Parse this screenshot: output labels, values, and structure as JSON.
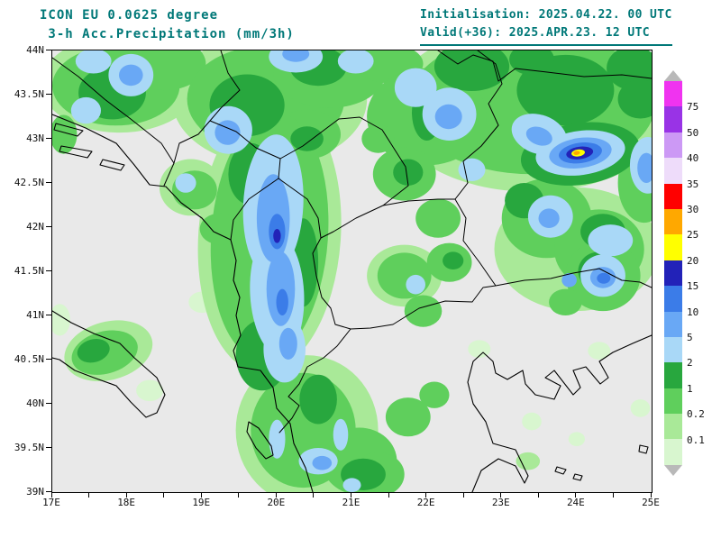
{
  "header": {
    "line1": "ICON EU 0.0625 degree",
    "line2": " 3-h Acc.Precipitation (mm/3h)",
    "init": "Initialisation: 2025.04.22. 00 UTC",
    "valid": "Valid(+36): 2025.APR.23. 12 UTC"
  },
  "colors": {
    "header_text": "#007878",
    "map_bg": "#e9e9e9",
    "line": "#000000",
    "tick_text": "#111111",
    "arrow_gray": "#b9b9b9"
  },
  "map": {
    "lon_min": 17,
    "lon_max": 25,
    "lat_min": 39,
    "lat_max": 44,
    "lat_ticks": [
      {
        "v": 44,
        "label": "44N"
      },
      {
        "v": 43.5,
        "label": "43.5N"
      },
      {
        "v": 43,
        "label": "43N"
      },
      {
        "v": 42.5,
        "label": "42.5N"
      },
      {
        "v": 42,
        "label": "42N"
      },
      {
        "v": 41.5,
        "label": "41.5N"
      },
      {
        "v": 41,
        "label": "41N"
      },
      {
        "v": 40.5,
        "label": "40.5N"
      },
      {
        "v": 40,
        "label": "40N"
      },
      {
        "v": 39.5,
        "label": "39.5N"
      },
      {
        "v": 39,
        "label": "39N"
      }
    ],
    "lon_ticks": [
      {
        "v": 17,
        "label": "17E"
      },
      {
        "v": 17.5,
        "label": ""
      },
      {
        "v": 18,
        "label": "18E"
      },
      {
        "v": 18.5,
        "label": ""
      },
      {
        "v": 19,
        "label": "19E"
      },
      {
        "v": 19.5,
        "label": ""
      },
      {
        "v": 20,
        "label": "20E"
      },
      {
        "v": 20.5,
        "label": ""
      },
      {
        "v": 21,
        "label": "21E"
      },
      {
        "v": 21.5,
        "label": ""
      },
      {
        "v": 22,
        "label": "22E"
      },
      {
        "v": 22.5,
        "label": ""
      },
      {
        "v": 23,
        "label": "23E"
      },
      {
        "v": 23.5,
        "label": ""
      },
      {
        "v": 24,
        "label": "24E"
      },
      {
        "v": 24.5,
        "label": ""
      },
      {
        "v": 25,
        "label": "25E"
      }
    ],
    "coast_paths": [
      "M 0 71 L 37 86 L 71 103 L 91 127 L 108 149 L 126 151 L 143 169 L 166 186 L 179 201 L 198 210 L 204 233 L 201 255 L 208 274 L 204 294 L 209 316 L 201 333 L 206 351 L 231 355 L 245 374 L 249 397 L 264 414 L 268 436 L 281 463 L 289 490",
      "M 4 81 L 34 89 L 28 95 L 2 88 Z",
      "M 10 106 L 44 112 L 39 119 L 8 112 Z",
      "M 56 121 L 80 127 L 76 133 L 53 127 Z",
      "M 0 289 L 21 302 L 46 314 L 75 325 L 91 341 L 116 363 L 125 382 L 116 402 L 104 407 L 87 390 L 71 372 L 46 363 L 25 355 L 8 343 L 0 341",
      "M 218 412 L 229 419 L 243 439 L 245 449 L 237 453 L 226 441 L 216 423 Z",
      "M 466 490 L 476 466 L 495 453 L 514 461 L 524 480 L 528 472 L 514 443 L 489 436 L 481 412 L 467 392 L 461 368 L 467 345 L 478 335 L 489 345 L 492 358 L 505 365 L 522 355 L 525 370 L 536 382 L 557 387 L 564 372 L 547 363 L 557 355 L 578 382 L 586 374 L 578 355 L 592 351 L 608 370 L 617 363 L 607 345 L 622 335 L 644 325 L 665 316",
      "M 560 462 L 570 465 L 567 470 L 558 467 Z",
      "M 580 470 L 588 472 L 586 477 L 578 475 Z",
      "M 652 438 L 661 440 L 659 447 L 651 445 Z"
    ],
    "border_paths": [
      "M 0 8 L 29 29 L 58 54 L 87 76 L 121 103 L 135 125 L 124 150",
      "M 187 0 L 195 25 L 208 44 L 187 64 L 175 78 L 162 93 L 141 103 L 135 125",
      "M 175 78 L 204 90 L 226 108 L 253 120 L 251 142 L 218 165 L 201 188 L 198 210",
      "M 253 120 L 278 106 L 318 76 L 341 74 L 366 88 L 392 129 L 395 150 L 367 172 L 337 186 L 312 201 L 298 208 L 295 186 L 283 165 L 251 142",
      "M 367 172 L 395 167 L 428 165 L 447 165 L 461 147 L 456 123 L 476 106 L 495 83 L 484 59 L 499 37 L 492 15 L 472 0",
      "M 447 165 L 459 186 L 456 211 L 474 235 L 492 261",
      "M 492 261 L 478 263 L 466 279 L 436 278 L 407 286 L 378 304 L 353 308 L 331 309",
      "M 331 309 L 314 304 L 309 286 L 299 274 L 293 250 L 289 225 L 298 208",
      "M 331 309 L 316 328 L 301 341 L 283 351 L 274 370 L 262 384 L 274 394 L 266 408 L 252 424",
      "M 428 0 L 450 15 L 467 5 L 489 12 L 495 34 L 514 20 L 549 24 L 590 29 L 632 27 L 665 31",
      "M 492 261 L 524 255 L 553 253 L 578 247 L 607 242 L 632 255 L 652 257 L 665 263"
    ],
    "blobs": [
      [
        18.3,
        40.15,
        0.18,
        0.12,
        0,
        "trace"
      ],
      [
        17.1,
        40.95,
        0.14,
        0.18,
        0,
        "trace"
      ],
      [
        23.4,
        39.8,
        0.13,
        0.1,
        0,
        "trace"
      ],
      [
        24.0,
        39.6,
        0.11,
        0.08,
        0,
        "trace"
      ],
      [
        24.85,
        39.95,
        0.13,
        0.1,
        0,
        "trace"
      ],
      [
        24.3,
        40.6,
        0.15,
        0.1,
        0,
        "trace"
      ],
      [
        22.7,
        40.62,
        0.15,
        0.1,
        0,
        "trace"
      ],
      [
        19.0,
        41.15,
        0.18,
        0.12,
        0,
        "trace"
      ],
      [
        17.9,
        43.62,
        1.05,
        0.55,
        0,
        "0.1"
      ],
      [
        19.9,
        43.45,
        1.3,
        0.75,
        0,
        "0.1"
      ],
      [
        23.4,
        43.35,
        1.9,
        0.95,
        0,
        "0.1"
      ],
      [
        19.9,
        41.9,
        0.95,
        1.55,
        4,
        "0.1"
      ],
      [
        18.85,
        42.45,
        0.42,
        0.32,
        0,
        "0.1"
      ],
      [
        21.7,
        41.45,
        0.5,
        0.35,
        0,
        "0.1"
      ],
      [
        24.0,
        41.75,
        1.1,
        0.7,
        0,
        "0.1"
      ],
      [
        20.4,
        39.7,
        0.95,
        0.85,
        0,
        "0.1"
      ],
      [
        17.75,
        40.6,
        0.6,
        0.33,
        -15,
        "0.1"
      ],
      [
        23.35,
        39.35,
        0.16,
        0.1,
        0,
        "0.1"
      ],
      [
        17.85,
        43.6,
        0.85,
        0.45,
        0,
        "0.2"
      ],
      [
        18.5,
        43.85,
        0.55,
        0.3,
        0,
        "0.2"
      ],
      [
        17.15,
        43.05,
        0.18,
        0.22,
        0,
        "0.2"
      ],
      [
        19.85,
        43.45,
        1.05,
        0.6,
        0,
        "0.2"
      ],
      [
        20.7,
        43.75,
        0.75,
        0.4,
        0,
        "0.2"
      ],
      [
        20.4,
        43.05,
        0.45,
        0.28,
        0,
        "0.2"
      ],
      [
        21.5,
        43.85,
        0.45,
        0.22,
        0,
        "0.2"
      ],
      [
        23.4,
        43.4,
        1.65,
        0.8,
        0,
        "0.2"
      ],
      [
        22.0,
        43.25,
        0.8,
        0.55,
        0,
        "0.2"
      ],
      [
        24.9,
        42.5,
        0.35,
        0.45,
        0,
        "0.2"
      ],
      [
        19.9,
        41.9,
        0.78,
        1.4,
        4,
        "0.2"
      ],
      [
        18.9,
        42.42,
        0.3,
        0.22,
        0,
        "0.2"
      ],
      [
        19.25,
        41.98,
        0.28,
        0.18,
        0,
        "0.2"
      ],
      [
        21.7,
        42.6,
        0.42,
        0.3,
        0,
        "0.2"
      ],
      [
        22.15,
        42.1,
        0.3,
        0.22,
        0,
        "0.2"
      ],
      [
        21.35,
        43.0,
        0.22,
        0.16,
        0,
        "0.2"
      ],
      [
        21.7,
        41.45,
        0.36,
        0.26,
        0,
        "0.2"
      ],
      [
        22.3,
        41.6,
        0.3,
        0.22,
        0,
        "0.2"
      ],
      [
        21.95,
        41.05,
        0.25,
        0.18,
        0,
        "0.2"
      ],
      [
        23.6,
        42.1,
        0.6,
        0.45,
        0,
        "0.2"
      ],
      [
        24.3,
        41.75,
        0.6,
        0.45,
        0,
        "0.2"
      ],
      [
        24.35,
        41.45,
        0.5,
        0.4,
        0,
        "0.2"
      ],
      [
        23.85,
        41.15,
        0.22,
        0.15,
        0,
        "0.2"
      ],
      [
        20.35,
        39.7,
        0.7,
        0.65,
        0,
        "0.2"
      ],
      [
        21.1,
        39.35,
        0.5,
        0.38,
        0,
        "0.2"
      ],
      [
        21.75,
        39.85,
        0.3,
        0.22,
        0,
        "0.2"
      ],
      [
        22.1,
        40.1,
        0.2,
        0.15,
        0,
        "0.2"
      ],
      [
        21.35,
        39.2,
        0.35,
        0.25,
        0,
        "0.2"
      ],
      [
        17.7,
        40.58,
        0.45,
        0.24,
        -15,
        "0.2"
      ],
      [
        17.8,
        43.52,
        0.45,
        0.3,
        0,
        "1"
      ],
      [
        19.6,
        43.38,
        0.5,
        0.35,
        0,
        "1"
      ],
      [
        20.55,
        43.82,
        0.38,
        0.22,
        0,
        "1"
      ],
      [
        20.4,
        43.0,
        0.22,
        0.14,
        0,
        "1"
      ],
      [
        22.6,
        43.82,
        0.5,
        0.28,
        0,
        "1"
      ],
      [
        23.85,
        43.55,
        0.65,
        0.4,
        0,
        "1"
      ],
      [
        24.75,
        43.8,
        0.35,
        0.25,
        0,
        "1"
      ],
      [
        23.4,
        43.9,
        0.3,
        0.18,
        0,
        "1"
      ],
      [
        22.0,
        43.3,
        0.2,
        0.32,
        0,
        "1"
      ],
      [
        24.05,
        42.83,
        0.8,
        0.35,
        -8,
        "1"
      ],
      [
        19.65,
        42.6,
        0.3,
        0.35,
        0,
        "1"
      ],
      [
        20.35,
        41.6,
        0.2,
        0.5,
        0,
        "1"
      ],
      [
        19.8,
        40.55,
        0.35,
        0.4,
        0,
        "1"
      ],
      [
        21.75,
        42.62,
        0.2,
        0.15,
        0,
        "1"
      ],
      [
        22.35,
        41.62,
        0.14,
        0.1,
        0,
        "1"
      ],
      [
        23.3,
        42.3,
        0.26,
        0.2,
        0,
        "1"
      ],
      [
        24.35,
        41.95,
        0.3,
        0.2,
        0,
        "1"
      ],
      [
        24.3,
        41.5,
        0.28,
        0.22,
        0,
        "1"
      ],
      [
        20.55,
        40.05,
        0.25,
        0.28,
        0,
        "1"
      ],
      [
        21.15,
        39.2,
        0.3,
        0.18,
        0,
        "1"
      ],
      [
        17.55,
        40.6,
        0.22,
        0.13,
        -15,
        "1"
      ],
      [
        24.85,
        43.45,
        0.3,
        0.22,
        0,
        "1"
      ],
      [
        18.05,
        43.72,
        0.3,
        0.24,
        0,
        "2"
      ],
      [
        17.55,
        43.88,
        0.24,
        0.14,
        0,
        "2"
      ],
      [
        17.45,
        43.32,
        0.2,
        0.15,
        0,
        "2"
      ],
      [
        19.35,
        43.1,
        0.32,
        0.27,
        0,
        "2"
      ],
      [
        20.25,
        43.93,
        0.36,
        0.18,
        0,
        "2"
      ],
      [
        21.05,
        43.88,
        0.24,
        0.14,
        0,
        "2"
      ],
      [
        21.85,
        43.58,
        0.28,
        0.22,
        0,
        "2"
      ],
      [
        22.3,
        43.28,
        0.36,
        0.3,
        0,
        "2"
      ],
      [
        23.5,
        43.05,
        0.38,
        0.22,
        20,
        "2"
      ],
      [
        22.6,
        42.65,
        0.18,
        0.13,
        0,
        "2"
      ],
      [
        24.05,
        42.84,
        0.6,
        0.25,
        -8,
        "2"
      ],
      [
        24.95,
        42.7,
        0.24,
        0.32,
        0,
        "2"
      ],
      [
        19.95,
        42.25,
        0.4,
        0.8,
        3,
        "2"
      ],
      [
        20.0,
        41.25,
        0.36,
        0.7,
        -3,
        "2"
      ],
      [
        20.1,
        40.62,
        0.28,
        0.38,
        0,
        "2"
      ],
      [
        18.78,
        42.5,
        0.14,
        0.11,
        0,
        "2"
      ],
      [
        21.85,
        41.35,
        0.13,
        0.11,
        0,
        "2"
      ],
      [
        23.65,
        42.12,
        0.3,
        0.24,
        0,
        "2"
      ],
      [
        24.45,
        41.85,
        0.3,
        0.18,
        0,
        "2"
      ],
      [
        24.35,
        41.45,
        0.3,
        0.24,
        0,
        "2"
      ],
      [
        20.0,
        39.6,
        0.11,
        0.22,
        0,
        "2"
      ],
      [
        20.55,
        39.35,
        0.26,
        0.15,
        0,
        "2"
      ],
      [
        20.85,
        39.65,
        0.1,
        0.18,
        0,
        "2"
      ],
      [
        21.0,
        39.08,
        0.12,
        0.08,
        0,
        "2"
      ],
      [
        18.05,
        43.72,
        0.16,
        0.12,
        0,
        "5"
      ],
      [
        19.34,
        43.07,
        0.17,
        0.14,
        0,
        "5"
      ],
      [
        20.25,
        43.96,
        0.18,
        0.09,
        0,
        "5"
      ],
      [
        22.29,
        43.25,
        0.18,
        0.14,
        0,
        "5"
      ],
      [
        23.5,
        43.03,
        0.18,
        0.1,
        20,
        "5"
      ],
      [
        24.05,
        42.84,
        0.42,
        0.17,
        -8,
        "5"
      ],
      [
        24.93,
        42.67,
        0.12,
        0.17,
        0,
        "5"
      ],
      [
        19.95,
        42.1,
        0.22,
        0.5,
        0,
        "5"
      ],
      [
        20.05,
        41.3,
        0.19,
        0.42,
        0,
        "5"
      ],
      [
        20.15,
        40.68,
        0.12,
        0.18,
        0,
        "5"
      ],
      [
        23.63,
        42.1,
        0.14,
        0.11,
        0,
        "5"
      ],
      [
        24.35,
        41.43,
        0.17,
        0.12,
        0,
        "5"
      ],
      [
        23.9,
        41.4,
        0.1,
        0.08,
        0,
        "5"
      ],
      [
        20.6,
        39.33,
        0.13,
        0.08,
        0,
        "5"
      ],
      [
        24.05,
        42.84,
        0.29,
        0.115,
        -8,
        "10"
      ],
      [
        20.0,
        41.95,
        0.11,
        0.2,
        0,
        "10"
      ],
      [
        20.07,
        41.15,
        0.08,
        0.15,
        0,
        "10"
      ],
      [
        24.36,
        41.42,
        0.09,
        0.06,
        0,
        "10"
      ],
      [
        24.04,
        42.84,
        0.18,
        0.07,
        -8,
        "15"
      ],
      [
        20.0,
        41.9,
        0.05,
        0.08,
        0,
        "15"
      ],
      [
        24.02,
        42.84,
        0.09,
        0.04,
        -8,
        "20"
      ],
      [
        24.0,
        42.84,
        0.045,
        0.022,
        -8,
        "25"
      ]
    ]
  },
  "colorbar": {
    "map_palette": {
      "trace": "#d8f6cf",
      "0.1": "#a9e998",
      "0.2": "#5fcf5c",
      "1": "#28a73e",
      "2": "#a9d8f7",
      "5": "#69a8f5",
      "10": "#3b7ce8",
      "15": "#2222b8",
      "20": "#ffff00",
      "25": "#ffa800",
      "30": "#ff0000",
      "35": "#eedcfa",
      "40": "#cc99f5",
      "50": "#9933e6",
      "75": "#f033f0"
    },
    "bands_top_to_bottom": [
      {
        "color": "#f033f0",
        "label": "75"
      },
      {
        "color": "#9933e6",
        "label": "50"
      },
      {
        "color": "#cc99f5",
        "label": "40"
      },
      {
        "color": "#eedcfa",
        "label": "35"
      },
      {
        "color": "#ff0000",
        "label": "30"
      },
      {
        "color": "#ffa800",
        "label": "25"
      },
      {
        "color": "#ffff00",
        "label": "20"
      },
      {
        "color": "#2222b8",
        "label": "15"
      },
      {
        "color": "#3b7ce8",
        "label": "10"
      },
      {
        "color": "#69a8f5",
        "label": "5"
      },
      {
        "color": "#a9d8f7",
        "label": "2"
      },
      {
        "color": "#28a73e",
        "label": "1"
      },
      {
        "color": "#5fcf5c",
        "label": "0.2"
      },
      {
        "color": "#a9e998",
        "label": "0.1"
      },
      {
        "color": "#d8f6cf",
        "label": ""
      }
    ]
  }
}
